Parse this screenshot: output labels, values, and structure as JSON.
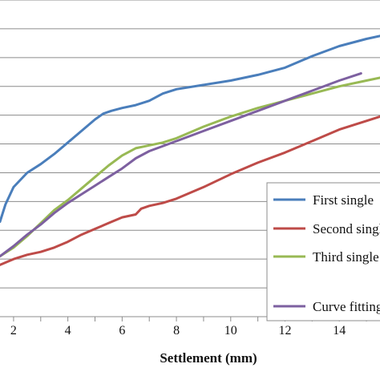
{
  "chart_data": {
    "type": "line",
    "xlabel": "Settlement (mm)",
    "ylabel": "",
    "xlim": [
      1.5,
      15.5
    ],
    "ylim": [
      0,
      11
    ],
    "grid": true,
    "legend_position": "bottom-right",
    "x_ticks": [
      "2",
      "4",
      "6",
      "8",
      "10",
      "12",
      "14"
    ],
    "series": [
      {
        "name": "First single",
        "color": "#4a7ebb",
        "x": [
          1.5,
          1.7,
          2.0,
          2.5,
          3.0,
          3.5,
          4.0,
          4.5,
          5.0,
          5.3,
          5.6,
          6.0,
          6.5,
          7.0,
          7.5,
          8.0,
          9.0,
          10.0,
          11.0,
          12.0,
          13.0,
          14.0,
          15.0,
          15.5
        ],
        "y": [
          3.3,
          3.9,
          4.5,
          5.0,
          5.3,
          5.65,
          6.05,
          6.45,
          6.85,
          7.05,
          7.15,
          7.25,
          7.35,
          7.5,
          7.75,
          7.9,
          8.05,
          8.2,
          8.4,
          8.65,
          9.05,
          9.4,
          9.65,
          9.75
        ]
      },
      {
        "name": "Second single",
        "color": "#be4b48",
        "x": [
          1.5,
          2.0,
          2.5,
          3.0,
          3.5,
          4.0,
          4.5,
          5.0,
          5.5,
          6.0,
          6.5,
          6.7,
          7.0,
          7.5,
          8.0,
          9.0,
          10.0,
          11.0,
          12.0,
          13.0,
          14.0,
          15.0,
          15.5
        ],
        "y": [
          1.8,
          2.0,
          2.15,
          2.25,
          2.4,
          2.6,
          2.85,
          3.05,
          3.25,
          3.45,
          3.55,
          3.75,
          3.85,
          3.95,
          4.1,
          4.5,
          4.95,
          5.35,
          5.7,
          6.1,
          6.5,
          6.8,
          6.95
        ]
      },
      {
        "name": "Third single",
        "color": "#98b954",
        "x": [
          1.5,
          2.0,
          2.5,
          3.0,
          3.5,
          4.0,
          4.5,
          5.0,
          5.5,
          6.0,
          6.5,
          7.0,
          7.5,
          8.0,
          9.0,
          10.0,
          11.0,
          12.0,
          13.0,
          14.0,
          15.0,
          15.5
        ],
        "y": [
          2.1,
          2.4,
          2.8,
          3.25,
          3.7,
          4.05,
          4.45,
          4.85,
          5.25,
          5.6,
          5.85,
          5.95,
          6.05,
          6.2,
          6.6,
          6.95,
          7.25,
          7.5,
          7.75,
          8.0,
          8.2,
          8.3
        ]
      },
      {
        "name": "Curve fitting",
        "color": "#7d60a0",
        "x": [
          1.5,
          2.0,
          2.5,
          3.0,
          3.5,
          4.0,
          4.5,
          5.0,
          5.5,
          6.0,
          6.5,
          7.0,
          8.0,
          9.0,
          10.0,
          11.0,
          12.0,
          13.0,
          14.0,
          14.8
        ],
        "y": [
          2.1,
          2.45,
          2.85,
          3.2,
          3.6,
          3.95,
          4.25,
          4.55,
          4.85,
          5.15,
          5.5,
          5.75,
          6.1,
          6.45,
          6.8,
          7.15,
          7.5,
          7.85,
          8.2,
          8.45
        ]
      }
    ]
  }
}
